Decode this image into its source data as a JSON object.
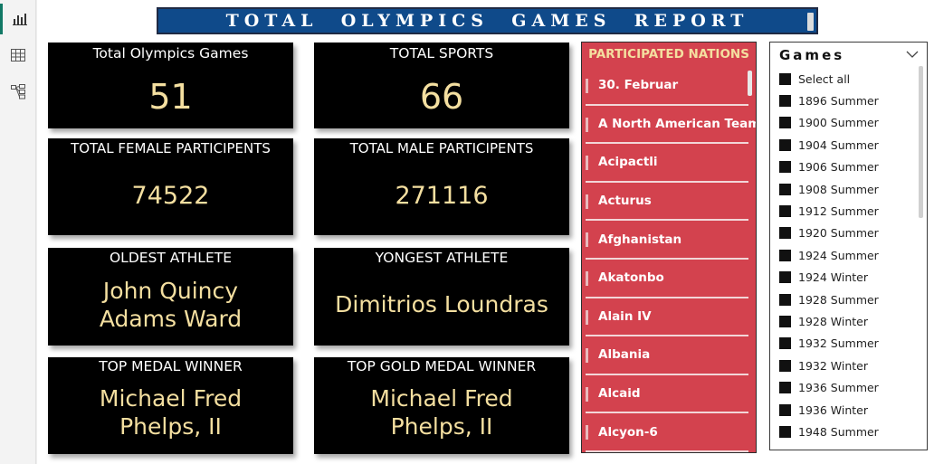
{
  "title": "TOTAL  OLYMPICS  GAMES  REPORT",
  "nav": {
    "icons": [
      "report-view-icon",
      "table-view-icon",
      "model-view-icon"
    ]
  },
  "cards": {
    "total_games": {
      "label": "Total Olympics Games",
      "value": "51"
    },
    "total_sports": {
      "label": "TOTAL SPORTS",
      "value": "66"
    },
    "female": {
      "label": "TOTAL FEMALE PARTICIPENTS",
      "value": "74522"
    },
    "male": {
      "label": "TOTAL MALE PARTICIPENTS",
      "value": "271116"
    },
    "oldest": {
      "label": "OLDEST ATHLETE",
      "value_line1": "John Quincy",
      "value_line2": "Adams Ward"
    },
    "youngest": {
      "label": "YONGEST ATHLETE",
      "value": "Dimitrios Loundras"
    },
    "top_medal": {
      "label": "TOP MEDAL WINNER",
      "value_line1": "Michael Fred",
      "value_line2": "Phelps, II"
    },
    "top_gold": {
      "label": "TOP GOLD MEDAL WINNER",
      "value_line1": "Michael Fred",
      "value_line2": "Phelps, II"
    }
  },
  "nations": {
    "header": "PARTICIPATED NATIONS",
    "items": [
      "30. Februar",
      "A North American Team",
      "Acipactli",
      "Acturus",
      "Afghanistan",
      "Akatonbo",
      "Alain IV",
      "Albania",
      "Alcaid",
      "Alcyon-6"
    ]
  },
  "games": {
    "header": "Games",
    "items": [
      "Select all",
      "1896 Summer",
      "1900 Summer",
      "1904 Summer",
      "1906 Summer",
      "1908 Summer",
      "1912 Summer",
      "1920 Summer",
      "1924 Summer",
      "1924 Winter",
      "1928 Summer",
      "1928 Winter",
      "1932 Summer",
      "1932 Winter",
      "1936 Summer",
      "1936 Winter",
      "1948 Summer"
    ]
  },
  "colors": {
    "title_bg": "#0f4a8a",
    "card_bg": "#000000",
    "card_value": "#f4dfa0",
    "nations_bg": "#d3424e",
    "rail_accent": "#117865"
  }
}
